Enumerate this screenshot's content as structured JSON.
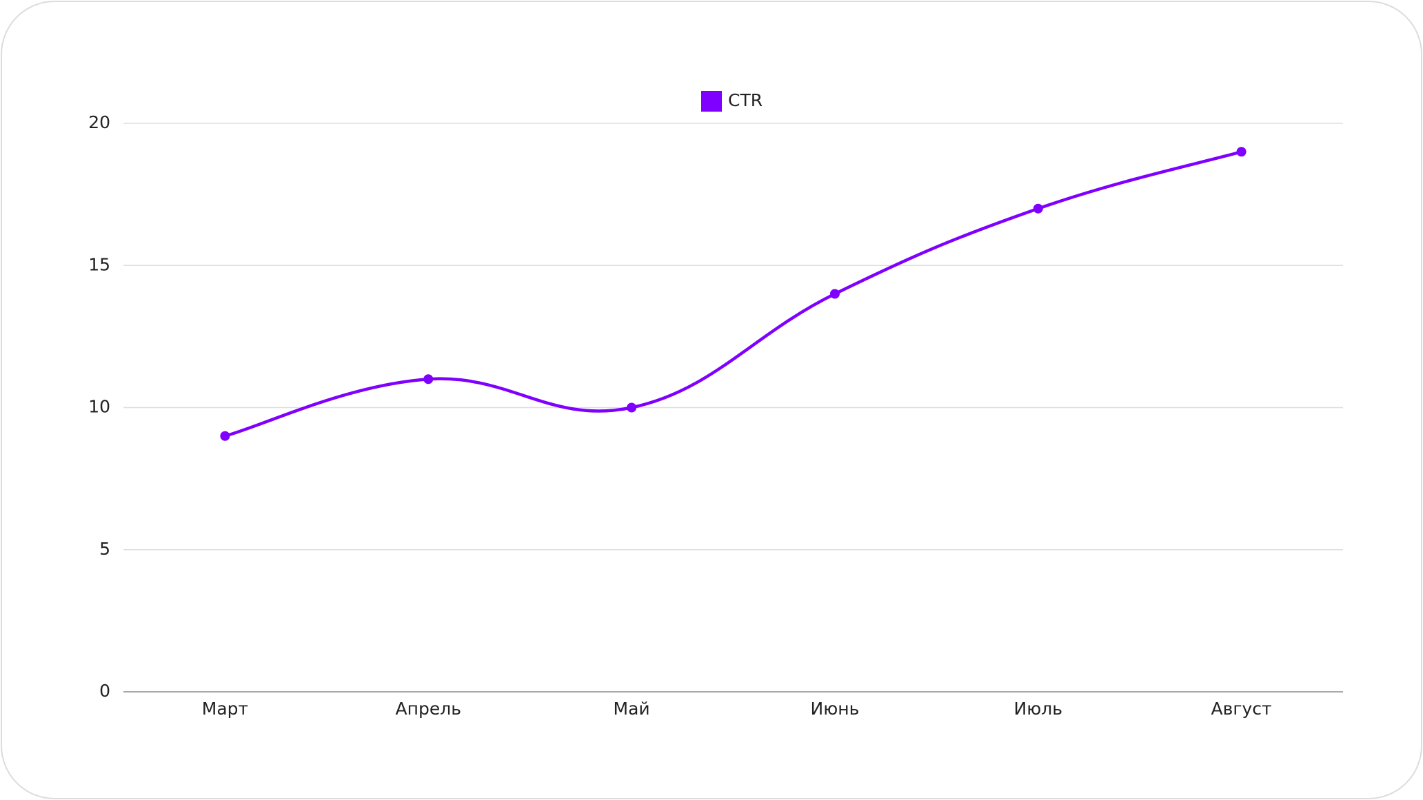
{
  "chart_data": {
    "type": "line",
    "categories": [
      "Март",
      "Апрель",
      "Май",
      "Июнь",
      "Июль",
      "Август"
    ],
    "series": [
      {
        "name": "CTR",
        "color": "#7f00ff",
        "values": [
          9,
          11,
          10,
          14,
          17,
          19
        ]
      }
    ],
    "ylim": [
      0,
      20
    ],
    "yticks": [
      0,
      5,
      10,
      15,
      20
    ],
    "grid": true,
    "legend": "top"
  }
}
